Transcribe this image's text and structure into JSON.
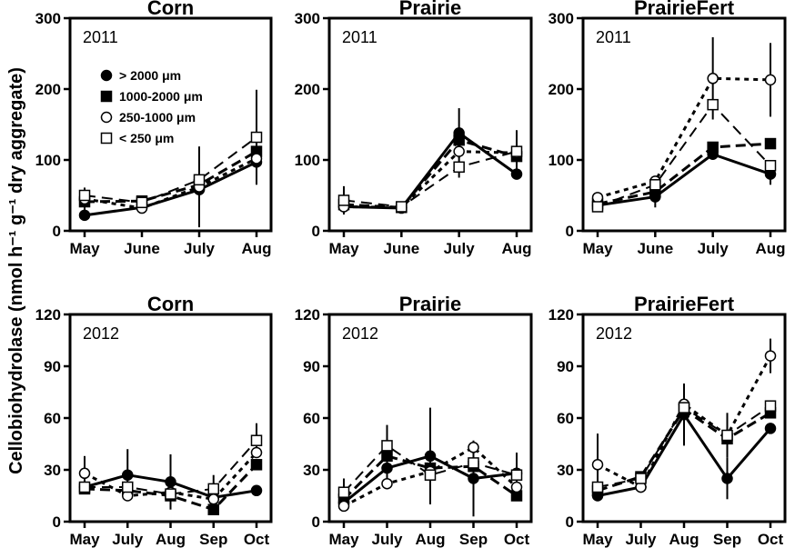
{
  "y_axis_label": "Cellobiohydrolase (nmol h⁻¹ g⁻¹ dry aggregate)",
  "legend": [
    "> 2000 μm",
    "1000-2000 μm",
    "250-1000 μm",
    "< 250 μm"
  ],
  "chart_data": [
    {
      "type": "line",
      "title": "Corn",
      "year_label": "2011",
      "categories": [
        "May",
        "June",
        "July",
        "Aug"
      ],
      "ylim": [
        0,
        300
      ],
      "yticks": [
        0,
        100,
        200,
        300
      ],
      "legend": true,
      "series": [
        {
          "name": "> 2000 μm",
          "values": [
            22,
            33,
            58,
            97
          ],
          "err": [
            0,
            0,
            0,
            18
          ]
        },
        {
          "name": "1000-2000 μm",
          "values": [
            41,
            42,
            65,
            112
          ],
          "err": [
            20,
            0,
            0,
            0
          ]
        },
        {
          "name": "250-1000 μm",
          "values": [
            45,
            32,
            62,
            102
          ],
          "err": [
            0,
            0,
            57,
            0
          ]
        },
        {
          "name": "< 250 μm",
          "values": [
            50,
            40,
            72,
            132
          ],
          "err": [
            0,
            0,
            0,
            67
          ]
        }
      ]
    },
    {
      "type": "line",
      "title": "Prairie",
      "year_label": "2011",
      "categories": [
        "May",
        "June",
        "July",
        "Aug"
      ],
      "ylim": [
        0,
        300
      ],
      "yticks": [
        0,
        100,
        200,
        300
      ],
      "legend": false,
      "series": [
        {
          "name": "> 2000 μm",
          "values": [
            34,
            32,
            138,
            80
          ],
          "err": [
            0,
            0,
            35,
            0
          ]
        },
        {
          "name": "1000-2000 μm",
          "values": [
            37,
            33,
            128,
            105
          ],
          "err": [
            0,
            0,
            0,
            0
          ]
        },
        {
          "name": "250-1000 μm",
          "values": [
            34,
            33,
            112,
            110
          ],
          "err": [
            0,
            0,
            0,
            0
          ]
        },
        {
          "name": "< 250 μm",
          "values": [
            43,
            34,
            90,
            112
          ],
          "err": [
            20,
            0,
            15,
            30
          ]
        }
      ]
    },
    {
      "type": "line",
      "title": "PrairieFert",
      "year_label": "2011",
      "categories": [
        "May",
        "June",
        "July",
        "Aug"
      ],
      "ylim": [
        0,
        300
      ],
      "yticks": [
        0,
        100,
        200,
        300
      ],
      "legend": false,
      "series": [
        {
          "name": "> 2000 μm",
          "values": [
            36,
            48,
            108,
            80
          ],
          "err": [
            0,
            15,
            0,
            15
          ]
        },
        {
          "name": "1000-2000 μm",
          "values": [
            38,
            55,
            118,
            123
          ],
          "err": [
            0,
            0,
            0,
            0
          ]
        },
        {
          "name": "250-1000 μm",
          "values": [
            47,
            70,
            215,
            213
          ],
          "err": [
            0,
            0,
            58,
            52
          ]
        },
        {
          "name": "< 250 μm",
          "values": [
            34,
            65,
            178,
            92
          ],
          "err": [
            0,
            0,
            0,
            0
          ]
        }
      ]
    },
    {
      "type": "line",
      "title": "Corn",
      "year_label": "2012",
      "categories": [
        "May",
        "July",
        "Aug",
        "Sep",
        "Oct"
      ],
      "ylim": [
        0,
        120
      ],
      "yticks": [
        0,
        30,
        60,
        90,
        120
      ],
      "legend": false,
      "series": [
        {
          "name": "> 2000 μm",
          "values": [
            20,
            27,
            23,
            14,
            18
          ],
          "err": [
            0,
            15,
            16,
            0,
            0
          ]
        },
        {
          "name": "1000-2000 μm",
          "values": [
            19,
            18,
            15,
            7,
            33
          ],
          "err": [
            0,
            0,
            0,
            0,
            0
          ]
        },
        {
          "name": "250-1000 μm",
          "values": [
            28,
            15,
            17,
            13,
            40
          ],
          "err": [
            10,
            0,
            0,
            0,
            0
          ]
        },
        {
          "name": "< 250 μm",
          "values": [
            20,
            20,
            16,
            19,
            47
          ],
          "err": [
            0,
            0,
            0,
            8,
            10
          ]
        }
      ]
    },
    {
      "type": "line",
      "title": "Prairie",
      "year_label": "2012",
      "categories": [
        "May",
        "July",
        "Aug",
        "Sep",
        "Oct"
      ],
      "ylim": [
        0,
        120
      ],
      "yticks": [
        0,
        30,
        60,
        90,
        120
      ],
      "legend": false,
      "series": [
        {
          "name": "> 2000 μm",
          "values": [
            11,
            31,
            38,
            25,
            28
          ],
          "err": [
            0,
            0,
            28,
            22,
            12
          ]
        },
        {
          "name": "1000-2000 μm",
          "values": [
            13,
            38,
            31,
            32,
            15
          ],
          "err": [
            0,
            18,
            0,
            0,
            0
          ]
        },
        {
          "name": "250-1000 μm",
          "values": [
            9,
            22,
            29,
            43,
            20
          ],
          "err": [
            0,
            0,
            0,
            0,
            0
          ]
        },
        {
          "name": "< 250 μm",
          "values": [
            17,
            44,
            27,
            34,
            27
          ],
          "err": [
            8,
            0,
            0,
            0,
            0
          ]
        }
      ]
    },
    {
      "type": "line",
      "title": "PrairieFert",
      "year_label": "2012",
      "categories": [
        "May",
        "July",
        "Aug",
        "Sep",
        "Oct"
      ],
      "ylim": [
        0,
        120
      ],
      "yticks": [
        0,
        30,
        60,
        90,
        120
      ],
      "legend": false,
      "series": [
        {
          "name": "> 2000 μm",
          "values": [
            15,
            20,
            62,
            25,
            54
          ],
          "err": [
            0,
            0,
            18,
            12,
            0
          ]
        },
        {
          "name": "1000-2000 μm",
          "values": [
            18,
            26,
            65,
            48,
            63
          ],
          "err": [
            0,
            0,
            0,
            0,
            0
          ]
        },
        {
          "name": "250-1000 μm",
          "values": [
            33,
            20,
            68,
            50,
            96
          ],
          "err": [
            18,
            0,
            0,
            0,
            10
          ]
        },
        {
          "name": "< 250 μm",
          "values": [
            20,
            25,
            66,
            50,
            67
          ],
          "err": [
            0,
            0,
            0,
            13,
            0
          ]
        }
      ]
    }
  ]
}
